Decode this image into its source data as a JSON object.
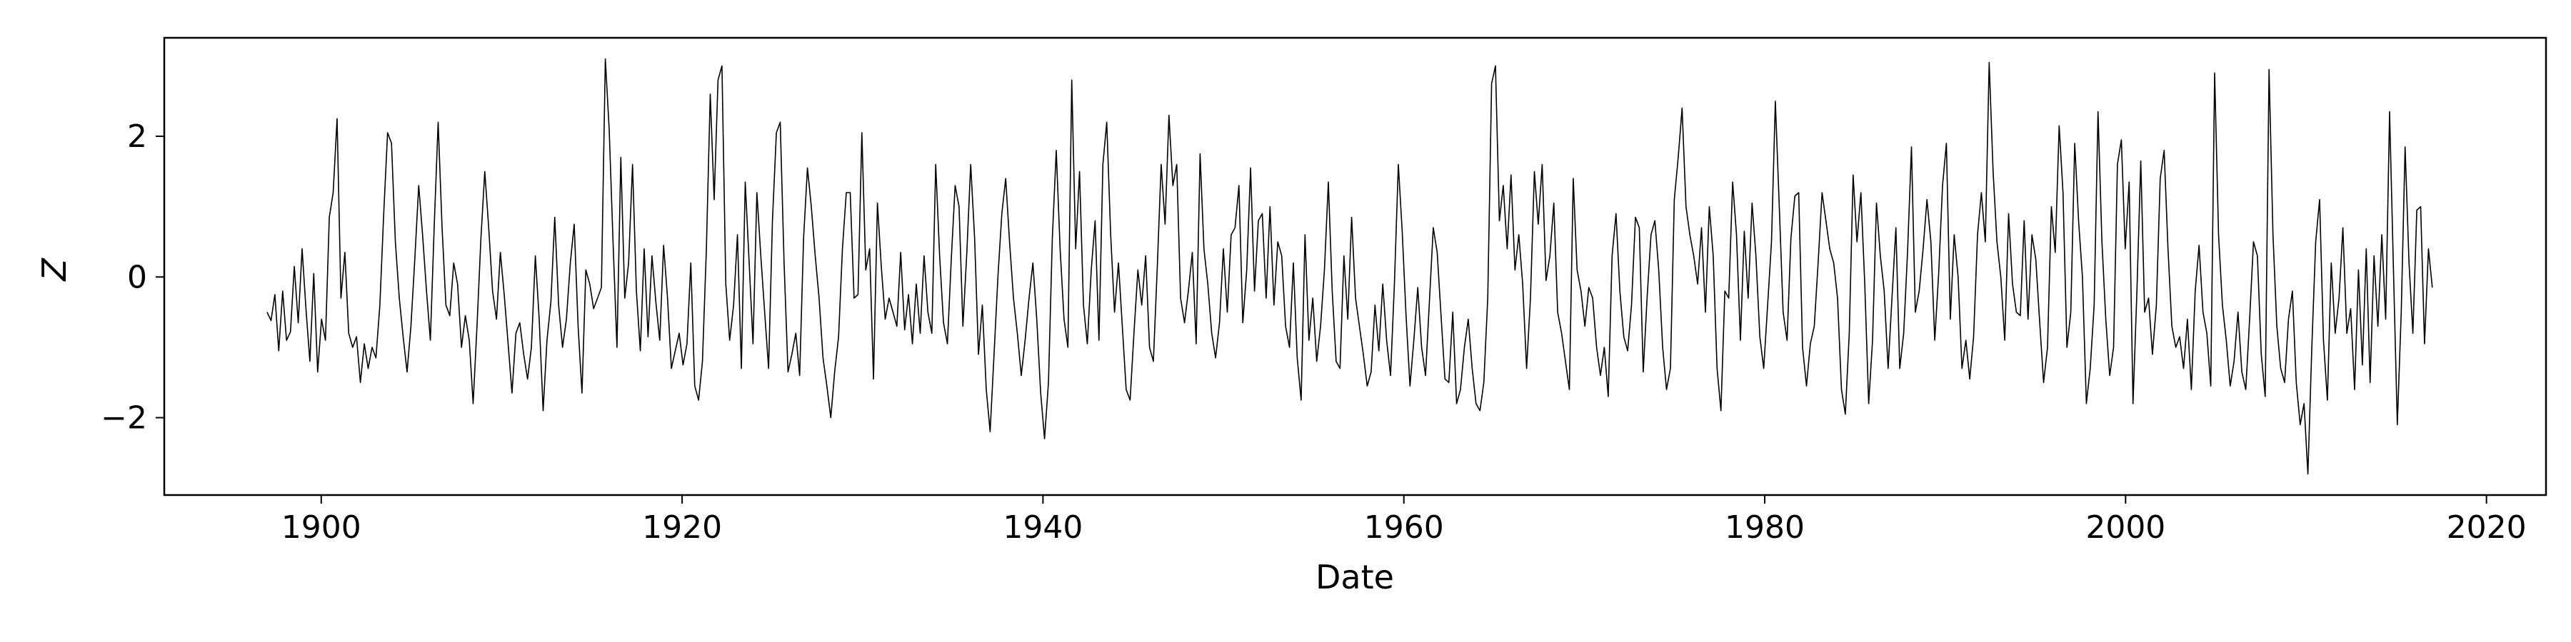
{
  "chart_data": {
    "type": "line",
    "title": "",
    "xlabel": "Date",
    "ylabel": "Z",
    "xlim": [
      1891.3,
      2023.3
    ],
    "ylim": [
      -3.1,
      3.4
    ],
    "xticks": [
      1900,
      1920,
      1940,
      1960,
      1980,
      2000,
      2020
    ],
    "yticks": [
      -2,
      0,
      2
    ],
    "ytick_labels": [
      "−2",
      "0",
      "2"
    ],
    "grid": false,
    "legend": "none",
    "x_start": 1897.0,
    "x_end": 2017.0,
    "x_step": 0.0833,
    "line_color": "#000000",
    "values": [
      -0.5,
      -0.62,
      -0.25,
      -1.05,
      -0.2,
      -0.9,
      -0.78,
      0.15,
      -0.65,
      0.4,
      -0.45,
      -1.2,
      0.05,
      -1.35,
      -0.6,
      -0.9,
      0.85,
      1.2,
      2.25,
      -0.3,
      0.35,
      -0.8,
      -1.0,
      -0.85,
      -1.5,
      -0.95,
      -1.3,
      -1.0,
      -1.15,
      -0.4,
      0.9,
      2.05,
      1.9,
      0.5,
      -0.3,
      -0.85,
      -1.35,
      -0.7,
      0.25,
      1.3,
      0.6,
      -0.2,
      -0.9,
      0.75,
      2.2,
      0.7,
      -0.4,
      -0.55,
      0.2,
      -0.1,
      -1.0,
      -0.55,
      -0.9,
      -1.8,
      -0.7,
      0.55,
      1.5,
      0.7,
      -0.2,
      -0.6,
      0.35,
      -0.25,
      -0.95,
      -1.65,
      -0.8,
      -0.65,
      -1.1,
      -1.45,
      -1.0,
      0.3,
      -0.6,
      -1.9,
      -0.9,
      -0.35,
      0.85,
      -0.4,
      -1.0,
      -0.6,
      0.2,
      0.75,
      -0.7,
      -1.65,
      0.1,
      -0.1,
      -0.45,
      -0.3,
      -0.15,
      3.1,
      2.1,
      0.5,
      -1.0,
      1.7,
      -0.3,
      0.2,
      1.6,
      -0.2,
      -1.05,
      0.4,
      -0.85,
      0.3,
      -0.35,
      -0.9,
      0.45,
      -0.3,
      -1.3,
      -1.05,
      -0.8,
      -1.25,
      -0.95,
      0.2,
      -1.55,
      -1.75,
      -1.2,
      0.4,
      2.6,
      1.1,
      2.8,
      3.0,
      -0.1,
      -0.9,
      -0.4,
      0.6,
      -1.3,
      1.35,
      0.2,
      -0.95,
      1.2,
      0.3,
      -0.5,
      -1.3,
      0.8,
      2.05,
      2.2,
      0.2,
      -1.35,
      -1.1,
      -0.8,
      -1.4,
      0.55,
      1.55,
      1.0,
      0.3,
      -0.3,
      -1.15,
      -1.55,
      -2.0,
      -1.35,
      -0.85,
      0.4,
      1.2,
      1.2,
      -0.3,
      -0.25,
      2.05,
      0.1,
      0.4,
      -1.45,
      1.05,
      0.15,
      -0.6,
      -0.3,
      -0.5,
      -0.7,
      0.35,
      -0.75,
      -0.25,
      -0.95,
      -0.1,
      -0.8,
      0.3,
      -0.5,
      -0.8,
      1.6,
      0.3,
      -0.65,
      -0.95,
      0.25,
      1.3,
      1.0,
      -0.7,
      0.35,
      1.6,
      0.55,
      -1.1,
      -0.4,
      -1.6,
      -2.2,
      -1.1,
      0.0,
      0.9,
      1.4,
      0.5,
      -0.3,
      -0.8,
      -1.4,
      -0.9,
      -0.3,
      0.2,
      -0.6,
      -1.65,
      -2.3,
      -1.5,
      0.55,
      1.8,
      0.4,
      -0.6,
      -1.0,
      2.8,
      0.4,
      1.5,
      -0.4,
      -0.95,
      0.1,
      0.8,
      -0.9,
      1.6,
      2.2,
      0.6,
      -0.5,
      0.2,
      -0.7,
      -1.6,
      -1.75,
      -0.8,
      0.1,
      -0.4,
      0.3,
      -1.0,
      -1.2,
      0.15,
      1.6,
      0.75,
      2.3,
      1.3,
      1.6,
      -0.3,
      -0.65,
      -0.2,
      0.35,
      -0.95,
      1.75,
      0.4,
      -0.1,
      -0.8,
      -1.15,
      -0.65,
      0.4,
      -0.5,
      0.6,
      0.7,
      1.3,
      -0.65,
      0.1,
      1.55,
      -0.2,
      0.8,
      0.9,
      -0.3,
      1.0,
      -0.4,
      0.5,
      0.3,
      -0.7,
      -1.0,
      0.2,
      -1.15,
      -1.75,
      0.6,
      -0.9,
      -0.3,
      -1.2,
      -0.7,
      0.1,
      1.35,
      -0.2,
      -1.2,
      -1.3,
      0.3,
      -0.6,
      0.85,
      -0.3,
      -0.7,
      -1.1,
      -1.55,
      -1.35,
      -0.4,
      -1.05,
      -0.1,
      -0.9,
      -1.4,
      -0.1,
      1.6,
      0.65,
      -0.55,
      -1.55,
      -0.9,
      -0.15,
      -1.0,
      -1.4,
      -0.35,
      0.7,
      0.35,
      -0.55,
      -1.45,
      -1.5,
      -0.5,
      -1.8,
      -1.6,
      -1.0,
      -0.6,
      -1.3,
      -1.8,
      -1.9,
      -1.5,
      -0.3,
      2.75,
      3.0,
      0.8,
      1.3,
      0.4,
      1.45,
      0.1,
      0.6,
      -0.1,
      -1.3,
      -0.3,
      1.5,
      0.75,
      1.6,
      -0.05,
      0.3,
      1.05,
      -0.5,
      -0.8,
      -1.2,
      -1.6,
      1.4,
      0.1,
      -0.2,
      -0.7,
      -0.15,
      -0.3,
      -1.0,
      -1.4,
      -1.0,
      -1.7,
      0.3,
      0.9,
      -0.2,
      -0.85,
      -1.05,
      -0.4,
      0.85,
      0.7,
      -1.35,
      -0.3,
      0.6,
      0.8,
      0.1,
      -1.0,
      -1.6,
      -1.3,
      1.1,
      1.7,
      2.4,
      1.0,
      0.6,
      0.3,
      -0.1,
      0.7,
      -0.5,
      1.0,
      0.3,
      -1.3,
      -1.9,
      -0.2,
      -0.3,
      1.35,
      0.6,
      -0.9,
      0.65,
      -0.3,
      1.05,
      0.3,
      -0.85,
      -1.3,
      -0.4,
      0.5,
      2.5,
      1.0,
      -0.5,
      -0.9,
      0.55,
      1.15,
      1.2,
      -1.0,
      -1.55,
      -0.95,
      -0.7,
      0.2,
      1.2,
      0.8,
      0.4,
      0.2,
      -0.3,
      -1.6,
      -1.95,
      -0.8,
      1.45,
      0.5,
      1.2,
      -0.1,
      -1.8,
      -0.9,
      1.05,
      0.3,
      -0.2,
      -1.3,
      -0.3,
      0.7,
      -1.3,
      -0.8,
      0.35,
      1.85,
      -0.5,
      -0.2,
      0.4,
      1.1,
      0.5,
      -0.9,
      0.05,
      1.3,
      1.9,
      -0.6,
      0.6,
      0.0,
      -1.3,
      -0.9,
      -1.45,
      -0.85,
      0.6,
      1.2,
      0.5,
      3.05,
      1.5,
      0.5,
      0.0,
      -0.9,
      0.9,
      -0.1,
      -0.5,
      -0.55,
      0.8,
      -0.6,
      0.6,
      0.25,
      -0.65,
      -1.5,
      -1.0,
      1.0,
      0.35,
      2.15,
      1.2,
      -1.0,
      -0.5,
      1.9,
      0.8,
      0.0,
      -1.8,
      -1.3,
      -0.4,
      2.35,
      0.5,
      -0.6,
      -1.4,
      -1.0,
      1.6,
      1.95,
      0.4,
      1.35,
      -1.8,
      -0.2,
      1.65,
      -0.5,
      -0.3,
      -1.1,
      -0.4,
      1.4,
      1.8,
      0.4,
      -0.7,
      -1.0,
      -0.85,
      -1.3,
      -0.6,
      -1.6,
      -0.2,
      0.45,
      -0.5,
      -0.8,
      -1.55,
      2.9,
      0.6,
      -0.4,
      -0.9,
      -1.55,
      -1.2,
      -0.5,
      -1.35,
      -1.6,
      -0.6,
      0.5,
      0.3,
      -1.1,
      -1.7,
      2.95,
      0.6,
      -0.7,
      -1.3,
      -1.5,
      -0.6,
      -0.2,
      -1.5,
      -2.1,
      -1.8,
      -2.8,
      -1.0,
      0.5,
      1.1,
      -0.9,
      -1.75,
      0.2,
      -0.8,
      -0.3,
      0.7,
      -0.8,
      -0.45,
      -1.6,
      0.1,
      -1.25,
      0.4,
      -1.5,
      0.3,
      -0.7,
      0.6,
      -0.6,
      2.35,
      0.1,
      -2.1,
      -0.5,
      1.85,
      0.2,
      -0.8,
      0.95,
      1.0,
      -0.95,
      0.4,
      -0.15
    ]
  }
}
